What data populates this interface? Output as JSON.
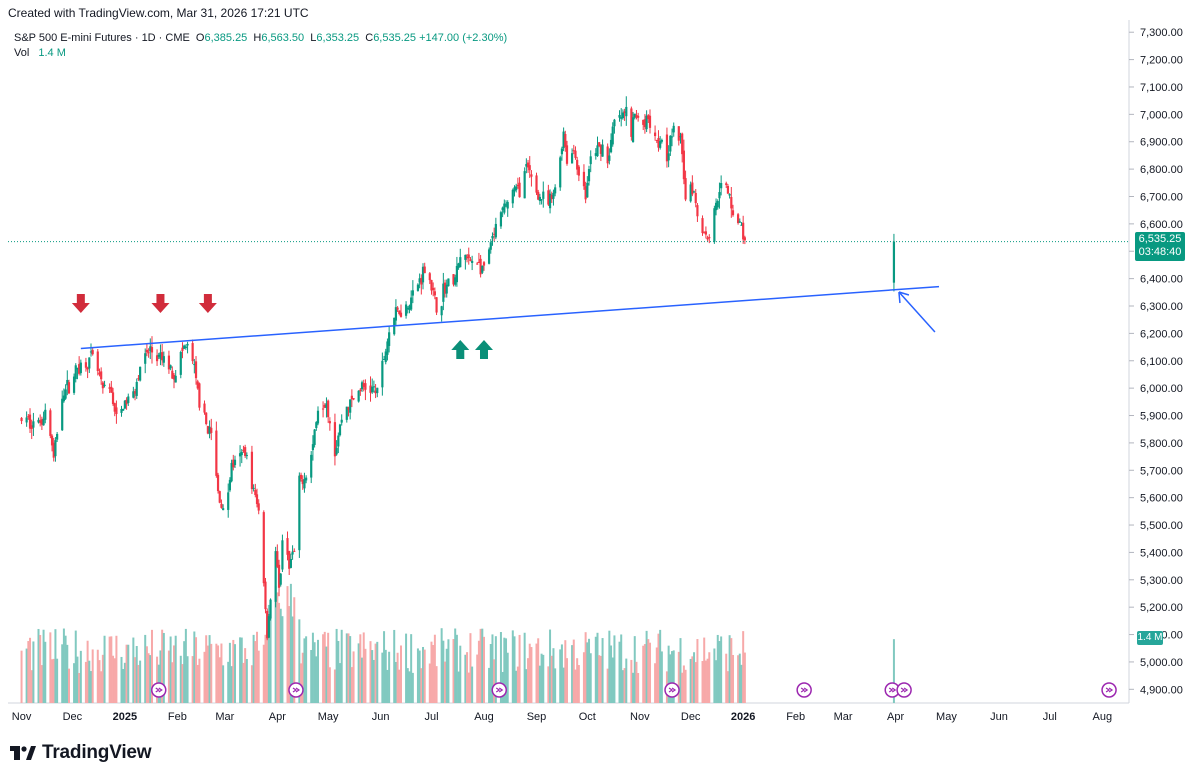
{
  "header": {
    "created_text": "Created with TradingView.com, Mar 31, 2026 17:21 UTC"
  },
  "legend": {
    "symbol": "S&P 500 E-mini Futures · 1D · CME",
    "open_label": "O",
    "open": "6,385.25",
    "high_label": "H",
    "high": "6,563.50",
    "low_label": "L",
    "low": "6,353.25",
    "close_label": "C",
    "close": "6,535.25",
    "change": "+147.00 (+2.30%)",
    "vol_label": "Vol",
    "vol": "1.4 M"
  },
  "price_tag": {
    "price": "6,535.25",
    "countdown": "03:48:40"
  },
  "volume_tag": "1.4 M",
  "brand": {
    "name": "TradingView"
  },
  "colors": {
    "up": "#089981",
    "down": "#f23645",
    "up_vol": "#81c9c0",
    "down_vol": "#f7a9a9",
    "trendline": "#2962ff",
    "event": "#9c27b0"
  },
  "chart_data": {
    "type": "candlestick",
    "title": "S&P 500 E-mini Futures · 1D · CME",
    "y_axis_ticks": [
      "7,300.00",
      "7,200.00",
      "7,100.00",
      "7,000.00",
      "6,900.00",
      "6,800.00",
      "6,700.00",
      "6,600.00",
      "6,500.00",
      "6,400.00",
      "6,300.00",
      "6,200.00",
      "6,100.00",
      "6,000.00",
      "5,900.00",
      "5,800.00",
      "5,700.00",
      "5,600.00",
      "5,500.00",
      "5,400.00",
      "5,300.00",
      "5,200.00",
      "5,100.00",
      "5,000.00",
      "4,900.00"
    ],
    "ylim": [
      4850,
      7330
    ],
    "x_axis_ticks": [
      "Nov",
      "Dec",
      "2025",
      "Feb",
      "Mar",
      "Apr",
      "May",
      "Jun",
      "Jul",
      "Aug",
      "Sep",
      "Oct",
      "Nov",
      "Dec",
      "2026",
      "Feb",
      "Mar",
      "Apr",
      "May",
      "Jun",
      "Jul",
      "Aug"
    ],
    "x_tick_days": [
      0,
      30,
      61,
      92,
      120,
      151,
      181,
      212,
      242,
      273,
      304,
      334,
      365,
      395,
      426,
      457,
      485,
      516,
      546,
      577,
      607,
      638
    ],
    "price_path": [
      [
        0,
        5885
      ],
      [
        10,
        5870
      ],
      [
        15,
        5925
      ],
      [
        19,
        5740
      ],
      [
        24,
        5985
      ],
      [
        28,
        6010
      ],
      [
        33,
        6075
      ],
      [
        38,
        6090
      ],
      [
        42,
        6110
      ],
      [
        45,
        6060
      ],
      [
        48,
        5990
      ],
      [
        53,
        5990
      ],
      [
        56,
        5880
      ],
      [
        60,
        5935
      ],
      [
        66,
        5980
      ],
      [
        70,
        6080
      ],
      [
        76,
        6140
      ],
      [
        80,
        6105
      ],
      [
        84,
        6105
      ],
      [
        90,
        6050
      ],
      [
        96,
        6150
      ],
      [
        100,
        6140
      ],
      [
        104,
        5985
      ],
      [
        108,
        5880
      ],
      [
        112,
        5830
      ],
      [
        116,
        5620
      ],
      [
        120,
        5530
      ],
      [
        124,
        5720
      ],
      [
        128,
        5730
      ],
      [
        132,
        5780
      ],
      [
        136,
        5650
      ],
      [
        140,
        5550
      ],
      [
        143,
        5300
      ],
      [
        145,
        5100
      ],
      [
        147,
        5240
      ],
      [
        150,
        5400
      ],
      [
        152,
        5250
      ],
      [
        155,
        5520
      ],
      [
        158,
        5350
      ],
      [
        161,
        5400
      ],
      [
        164,
        5650
      ],
      [
        168,
        5690
      ],
      [
        170,
        5710
      ],
      [
        175,
        5930
      ],
      [
        180,
        5960
      ],
      [
        185,
        5770
      ],
      [
        190,
        5920
      ],
      [
        195,
        5950
      ],
      [
        200,
        6000
      ],
      [
        205,
        6000
      ],
      [
        210,
        5990
      ],
      [
        214,
        6110
      ],
      [
        218,
        6240
      ],
      [
        222,
        6280
      ],
      [
        226,
        6290
      ],
      [
        230,
        6330
      ],
      [
        234,
        6380
      ],
      [
        238,
        6440
      ],
      [
        241,
        6400
      ],
      [
        243,
        6340
      ],
      [
        246,
        6260
      ],
      [
        249,
        6360
      ],
      [
        252,
        6380
      ],
      [
        256,
        6400
      ],
      [
        260,
        6500
      ],
      [
        264,
        6460
      ],
      [
        268,
        6480
      ],
      [
        272,
        6420
      ],
      [
        276,
        6500
      ],
      [
        280,
        6580
      ],
      [
        285,
        6660
      ],
      [
        290,
        6720
      ],
      [
        294,
        6730
      ],
      [
        298,
        6800
      ],
      [
        302,
        6760
      ],
      [
        305,
        6700
      ],
      [
        308,
        6690
      ],
      [
        311,
        6670
      ],
      [
        314,
        6700
      ],
      [
        317,
        6800
      ],
      [
        320,
        6940
      ],
      [
        322,
        6830
      ],
      [
        326,
        6870
      ],
      [
        330,
        6760
      ],
      [
        333,
        6700
      ],
      [
        336,
        6840
      ],
      [
        340,
        6870
      ],
      [
        344,
        6890
      ],
      [
        346,
        6830
      ],
      [
        350,
        6970
      ],
      [
        354,
        6990
      ],
      [
        358,
        7010
      ],
      [
        360,
        6930
      ],
      [
        362,
        7000
      ],
      [
        366,
        6960
      ],
      [
        370,
        6990
      ],
      [
        374,
        6930
      ],
      [
        376,
        6900
      ],
      [
        378,
        6920
      ],
      [
        380,
        6830
      ],
      [
        382,
        6880
      ],
      [
        384,
        6930
      ],
      [
        387,
        6940
      ],
      [
        390,
        6870
      ],
      [
        392,
        6700
      ],
      [
        394,
        6760
      ],
      [
        397,
        6720
      ],
      [
        400,
        6600
      ],
      [
        404,
        6560
      ],
      [
        406,
        6560
      ],
      [
        409,
        6640
      ],
      [
        412,
        6740
      ],
      [
        415,
        6730
      ],
      [
        418,
        6700
      ],
      [
        422,
        6610
      ],
      [
        425,
        6590
      ],
      [
        428,
        6500
      ]
    ],
    "trendline": {
      "from": {
        "date": "2024-12-06",
        "price": 6145
      },
      "to": {
        "date": "2026-04-03",
        "price": 6365
      }
    },
    "annotations": {
      "down_arrows": [
        "2024-12-06",
        "2025-01-22",
        "2025-02-19"
      ],
      "up_arrows": [
        "2025-07-18",
        "2025-08-01"
      ],
      "pointer_arrow": "2026-03-31"
    },
    "event_markers_days": [
      81,
      162,
      282,
      384,
      462,
      514,
      521,
      642
    ],
    "last": {
      "open": 6385.25,
      "high": 6563.5,
      "low": 6353.25,
      "close": 6535.25,
      "volume": "1.4 M"
    }
  }
}
